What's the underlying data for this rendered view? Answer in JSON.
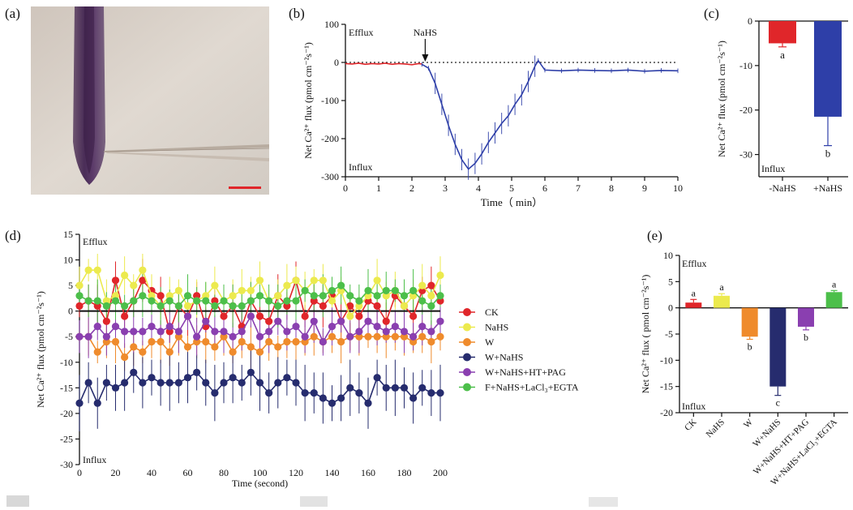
{
  "panels": {
    "a": {
      "label": "(a)"
    },
    "b": {
      "label": "(b)"
    },
    "c": {
      "label": "(c)"
    },
    "d": {
      "label": "(d)"
    },
    "e": {
      "label": "(e)"
    }
  },
  "colors": {
    "red": "#e0262a",
    "yellow": "#ecea4e",
    "orange": "#ef8b2c",
    "navy": "#262c6e",
    "purple": "#8a3fb0",
    "green": "#4cbf4a",
    "blue": "#2e3fa8",
    "black": "#111111"
  },
  "chart_data": [
    {
      "id": "b",
      "type": "line",
      "xlabel": "Time（ min）",
      "ylabel": "Net Ca²⁺ flux (pmol cm⁻²s⁻¹)",
      "xlim": [
        0,
        10
      ],
      "ylim": [
        -300,
        100
      ],
      "xticks": [
        0,
        1,
        2,
        3,
        4,
        5,
        6,
        7,
        8,
        9,
        10
      ],
      "yticks": [
        100,
        0,
        -100,
        -200,
        -300
      ],
      "annotations": {
        "top": "Efflux",
        "bottom": "Influx",
        "arrow": "NaHS",
        "arrow_x": 2.4
      },
      "reference_line_y": 0,
      "series": [
        {
          "color_key": "red",
          "x": [
            0,
            0.2,
            0.4,
            0.6,
            0.8,
            1.0,
            1.2,
            1.4,
            1.6,
            1.8,
            2.0,
            2.2,
            2.3
          ],
          "y": [
            -3,
            -4,
            -2,
            -5,
            -3,
            -4,
            -2,
            -5,
            -3,
            -4,
            -6,
            -3,
            -4
          ]
        },
        {
          "color_key": "blue",
          "x": [
            2.3,
            2.5,
            2.7,
            2.9,
            3.1,
            3.3,
            3.5,
            3.7,
            3.9,
            4.1,
            4.3,
            4.5,
            4.7,
            4.9,
            5.1,
            5.3,
            5.5,
            5.7,
            5.8,
            6.0,
            6.5,
            7.0,
            7.5,
            8.0,
            8.5,
            9.0,
            9.5,
            10.0
          ],
          "y": [
            -5,
            -15,
            -55,
            -110,
            -165,
            -215,
            -255,
            -280,
            -265,
            -240,
            -210,
            -185,
            -160,
            -140,
            -110,
            -85,
            -50,
            -10,
            5,
            -20,
            -22,
            -20,
            -21,
            -22,
            -20,
            -23,
            -21,
            -22
          ]
        }
      ]
    },
    {
      "id": "c",
      "type": "bar",
      "ylabel": "Net Ca²⁺ flux (pmol cm⁻²s⁻¹)",
      "ylim": [
        -35,
        0
      ],
      "yticks": [
        0,
        -10,
        -20,
        -30
      ],
      "annotations": {
        "bottom": "Influx"
      },
      "categories": [
        "-NaHS",
        "+NaHS"
      ],
      "values": [
        -5,
        -21.5
      ],
      "errors": [
        0.8,
        6.5
      ],
      "letters": [
        "a",
        "b"
      ],
      "color_keys": [
        "red",
        "blue"
      ]
    },
    {
      "id": "d",
      "type": "line",
      "xlabel": "Time (second)",
      "ylabel": "Net Ca²⁺ flux (pmol cm⁻²s⁻¹)",
      "xlim": [
        0,
        200
      ],
      "ylim": [
        -30,
        15
      ],
      "xticks": [
        0,
        20,
        40,
        60,
        80,
        100,
        120,
        140,
        160,
        180,
        200
      ],
      "yticks": [
        15,
        10,
        5,
        0,
        -5,
        -10,
        -15,
        -20,
        -25,
        -30
      ],
      "annotations": {
        "top": "Efflux",
        "bottom": "Influx"
      },
      "x": [
        0,
        5,
        10,
        15,
        20,
        25,
        30,
        35,
        40,
        45,
        50,
        55,
        60,
        65,
        70,
        75,
        80,
        85,
        90,
        95,
        100,
        105,
        110,
        115,
        120,
        125,
        130,
        135,
        140,
        145,
        150,
        155,
        160,
        165,
        170,
        175,
        180,
        185,
        190,
        195,
        200
      ],
      "series": [
        {
          "name": "CK",
          "color_key": "red",
          "y": [
            1,
            2,
            1,
            -2,
            6,
            -1,
            2,
            6,
            4,
            3,
            -4,
            1,
            -1,
            3,
            -3,
            2,
            -1,
            1,
            -3,
            2,
            -1,
            -2,
            3,
            1,
            6,
            -1,
            2,
            1,
            3,
            -2,
            1,
            -1,
            2,
            1,
            -2,
            3,
            1,
            -1,
            4,
            5,
            2
          ]
        },
        {
          "name": "NaHS",
          "color_key": "yellow",
          "y": [
            5,
            8,
            8,
            2,
            3,
            7,
            5,
            8,
            3,
            1,
            3,
            4,
            1,
            2,
            3,
            5,
            2,
            3,
            4,
            4,
            6,
            2,
            3,
            5,
            6,
            4,
            6,
            6,
            2,
            4,
            -1,
            1,
            3,
            6,
            3,
            4,
            1,
            3,
            5,
            3,
            7
          ]
        },
        {
          "name": "W",
          "color_key": "orange",
          "y": [
            -5,
            -5,
            -8,
            -6,
            -6,
            -9,
            -7,
            -8,
            -6,
            -6,
            -8,
            -5,
            -7,
            -6,
            -6,
            -7,
            -5,
            -8,
            -6,
            -7,
            -8,
            -6,
            -7,
            -6,
            -6,
            -6,
            -5,
            -6,
            -5,
            -6,
            -5,
            -5,
            -5,
            -5,
            -5,
            -5,
            -5,
            -6,
            -5,
            -6,
            -5
          ]
        },
        {
          "name": "W+NaHS",
          "color_key": "navy",
          "y": [
            -18,
            -14,
            -18,
            -14,
            -15,
            -14,
            -12,
            -14,
            -13,
            -14,
            -14,
            -14,
            -13,
            -12,
            -14,
            -16,
            -14,
            -13,
            -14,
            -12,
            -14,
            -16,
            -14,
            -13,
            -14,
            -16,
            -16,
            -17,
            -18,
            -17,
            -15,
            -16,
            -18,
            -13,
            -15,
            -15,
            -15,
            -17,
            -15,
            -16,
            -16
          ]
        },
        {
          "name": "W+NaHS+HT+PAG",
          "color_key": "purple",
          "y": [
            -5,
            -5,
            -3,
            -5,
            -3,
            -4,
            -4,
            -4,
            -3,
            -4,
            -3,
            -4,
            -1,
            -5,
            -2,
            -4,
            -4,
            -5,
            -4,
            -1,
            -5,
            -4,
            -2,
            -4,
            -3,
            -5,
            -2,
            -6,
            -3,
            -2,
            -5,
            -4,
            -2,
            -3,
            -4,
            -3,
            -4,
            -5,
            -3,
            -4,
            -2
          ]
        },
        {
          "name": "F+NaHS+LaCl₃+EGTA",
          "color_key": "green",
          "y": [
            3,
            2,
            2,
            1,
            2,
            1,
            2,
            3,
            2,
            1,
            2,
            1,
            3,
            2,
            2,
            1,
            2,
            1,
            1,
            2,
            3,
            2,
            1,
            2,
            2,
            4,
            3,
            3,
            4,
            5,
            3,
            2,
            4,
            3,
            4,
            4,
            3,
            4,
            2,
            1,
            3
          ]
        }
      ]
    },
    {
      "id": "e",
      "type": "bar",
      "ylabel": "Net Ca²⁺ flux ( pmol cm⁻²s⁻¹)",
      "ylim": [
        -20,
        10
      ],
      "yticks": [
        10,
        5,
        0,
        -5,
        -10,
        -15,
        -20
      ],
      "annotations": {
        "top": "Efflux",
        "bottom": "Influx"
      },
      "categories": [
        "CK",
        "NaHS",
        "W",
        "W+NaHS",
        "W+NaHS+HT+PAG",
        "W+NaHS+LaCl₃+EGTA"
      ],
      "values": [
        1.0,
        2.3,
        -5.5,
        -15,
        -3.6,
        3.0
      ],
      "errors": [
        0.6,
        0.4,
        0.5,
        1.7,
        0.6,
        0.3
      ],
      "letters": [
        "a",
        "a",
        "b",
        "c",
        "b",
        "a"
      ],
      "color_keys": [
        "red",
        "yellow",
        "orange",
        "navy",
        "purple",
        "green"
      ]
    }
  ]
}
